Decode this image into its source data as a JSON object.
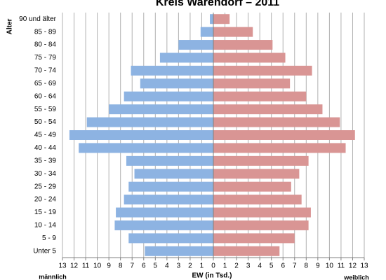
{
  "chart_data": {
    "type": "pyramid",
    "title": "Kreis Warendorf – 2011",
    "y_label": "Alter",
    "x_label": "EW (in Tsd.)",
    "categories": [
      "90 und älter",
      "85 - 89",
      "80 - 84",
      "75 - 79",
      "70 - 74",
      "65 - 69",
      "60 - 64",
      "55 - 59",
      "50 - 54",
      "45 - 49",
      "40 - 44",
      "35 - 39",
      "30 - 34",
      "25 - 29",
      "20 - 24",
      "15 - 19",
      "10 - 14",
      "5 - 9",
      "Unter 5"
    ],
    "series": [
      {
        "name": "männlich",
        "side": "left",
        "color": "#8db3e2",
        "values": [
          0.3,
          1.1,
          3.0,
          4.6,
          7.1,
          6.3,
          7.7,
          9.0,
          10.9,
          12.4,
          11.6,
          7.5,
          6.8,
          7.3,
          7.7,
          8.4,
          8.5,
          7.3,
          5.9
        ]
      },
      {
        "name": "weiblich",
        "side": "right",
        "color": "#d99594",
        "values": [
          1.4,
          3.4,
          5.1,
          6.2,
          8.5,
          6.6,
          8.0,
          9.4,
          10.9,
          12.2,
          11.4,
          8.2,
          7.4,
          6.7,
          7.6,
          8.4,
          8.2,
          7.0,
          5.7
        ]
      }
    ],
    "xlim": [
      -13,
      13
    ],
    "xticks": [
      {
        "value": -13,
        "label": "13"
      },
      {
        "value": -12,
        "label": "12"
      },
      {
        "value": -11,
        "label": "11"
      },
      {
        "value": -10,
        "label": "10"
      },
      {
        "value": -9,
        "label": "9"
      },
      {
        "value": -8,
        "label": "8"
      },
      {
        "value": -7,
        "label": "7"
      },
      {
        "value": -6,
        "label": "6"
      },
      {
        "value": -5,
        "label": "5"
      },
      {
        "value": -4,
        "label": "4"
      },
      {
        "value": -3,
        "label": "3"
      },
      {
        "value": -2,
        "label": "2"
      },
      {
        "value": -1,
        "label": "1"
      },
      0,
      1,
      2,
      3,
      4,
      5,
      6,
      7,
      8,
      9,
      10,
      11,
      12,
      13
    ],
    "grid": true
  }
}
